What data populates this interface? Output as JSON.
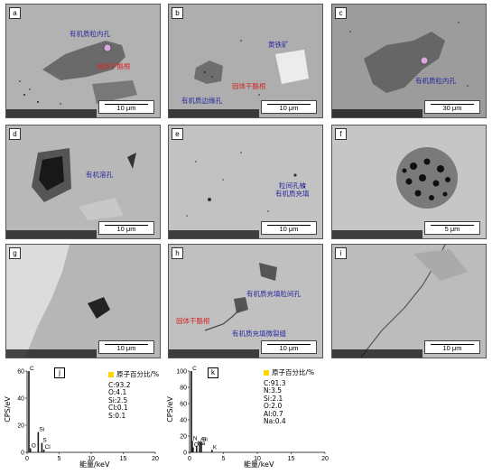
{
  "panels": [
    {
      "id": "a",
      "scale": "10 μm",
      "notes": [
        {
          "text": "有机质粒内孔",
          "color": "blue"
        },
        {
          "text": "固体干酪根",
          "color": "red"
        }
      ]
    },
    {
      "id": "b",
      "scale": "10 μm",
      "notes": [
        {
          "text": "黄铁矿",
          "color": "blue"
        },
        {
          "text": "固体干酪根",
          "color": "red"
        },
        {
          "text": "有机质边缘孔",
          "color": "blue"
        }
      ]
    },
    {
      "id": "c",
      "scale": "30 μm",
      "notes": [
        {
          "text": "有机质粒内孔",
          "color": "blue"
        }
      ]
    },
    {
      "id": "d",
      "scale": "10 μm",
      "notes": [
        {
          "text": "有机溶孔",
          "color": "blue"
        }
      ]
    },
    {
      "id": "e",
      "scale": "10 μm",
      "notes": [
        {
          "text": "粒间孔被",
          "color": "blue"
        },
        {
          "text": "有机质充填",
          "color": "blue"
        }
      ]
    },
    {
      "id": "f",
      "scale": "5 μm",
      "notes": []
    },
    {
      "id": "g",
      "scale": "10 μm",
      "notes": []
    },
    {
      "id": "h",
      "scale": "10 μm",
      "notes": [
        {
          "text": "有机质充填粒间孔",
          "color": "blue"
        },
        {
          "text": "固体干酪根",
          "color": "red"
        },
        {
          "text": "有机质充填微裂缝",
          "color": "blue"
        }
      ]
    },
    {
      "id": "i",
      "scale": "10 μm",
      "notes": []
    }
  ],
  "chart_data": [
    {
      "type": "bar",
      "panel": "j",
      "ylabel": "CPS/eV",
      "xlabel": "能量/keV",
      "xlim": [
        0,
        20
      ],
      "ylim": [
        0,
        60
      ],
      "xticks": [
        0,
        5,
        10,
        15,
        20
      ],
      "yticks": [
        0,
        20,
        40,
        60
      ],
      "peaks": [
        {
          "element": "C",
          "x": 0.28,
          "y": 60
        },
        {
          "element": "O",
          "x": 0.52,
          "y": 3
        },
        {
          "element": "Si",
          "x": 1.74,
          "y": 15
        },
        {
          "element": "S",
          "x": 2.31,
          "y": 7
        },
        {
          "element": "Cl",
          "x": 2.62,
          "y": 2
        }
      ],
      "legend_title": "原子百分比/%",
      "composition": [
        "C:93.2",
        "O:4.1",
        "Si:2.5",
        "Cl:0.1",
        "S:0.1"
      ]
    },
    {
      "type": "bar",
      "panel": "k",
      "ylabel": "CPS/eV",
      "xlabel": "能量/keV",
      "xlim": [
        0,
        20
      ],
      "ylim": [
        0,
        100
      ],
      "xticks": [
        0,
        5,
        10,
        15,
        20
      ],
      "yticks": [
        0,
        20,
        40,
        60,
        80,
        100
      ],
      "peaks": [
        {
          "element": "C",
          "x": 0.28,
          "y": 100
        },
        {
          "element": "N",
          "x": 0.39,
          "y": 14
        },
        {
          "element": "O",
          "x": 0.52,
          "y": 6
        },
        {
          "element": "Na",
          "x": 1.04,
          "y": 8
        },
        {
          "element": "Al",
          "x": 1.49,
          "y": 13
        },
        {
          "element": "Si",
          "x": 1.74,
          "y": 13
        },
        {
          "element": "K",
          "x": 3.31,
          "y": 3
        }
      ],
      "legend_title": "原子百分比/%",
      "composition": [
        "C:91.3",
        "N:3.5",
        "Si:2.1",
        "O:2.0",
        "Al:0.7",
        "Na:0.4"
      ]
    }
  ]
}
